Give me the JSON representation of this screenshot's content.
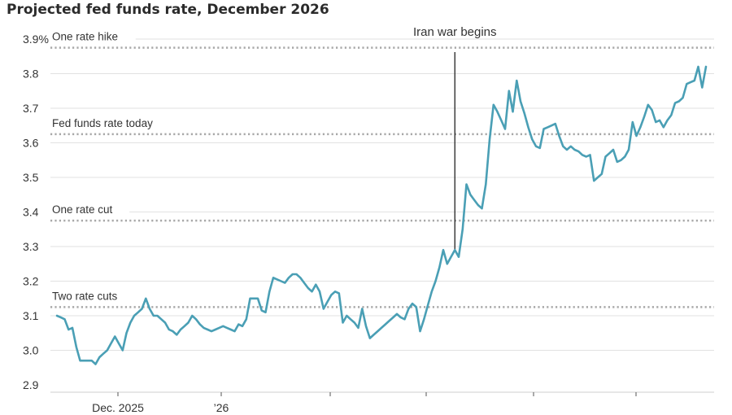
{
  "chart_data": {
    "type": "line",
    "title": "Projected fed funds rate, December 2026",
    "xlabel": "",
    "ylabel": "",
    "ylim": [
      2.9,
      3.9
    ],
    "y_ticks": [
      "2.9",
      "3.0",
      "3.1",
      "3.2",
      "3.3",
      "3.4",
      "3.5",
      "3.6",
      "3.7",
      "3.8",
      "3.9%"
    ],
    "y_tick_values": [
      2.9,
      3.0,
      3.1,
      3.2,
      3.3,
      3.4,
      3.5,
      3.6,
      3.7,
      3.8,
      3.9
    ],
    "x_tick_labels": [
      "Dec. 2025",
      "’26",
      "",
      "",
      "",
      ""
    ],
    "grid": "horizontal",
    "line_color": "#4a9fb5",
    "reference_lines": [
      {
        "label": "One rate hike",
        "value": 3.875
      },
      {
        "label": "Fed funds rate today",
        "value": 3.625
      },
      {
        "label": "One rate cut",
        "value": 3.375
      },
      {
        "label": "Two rate cuts",
        "value": 3.125
      }
    ],
    "annotations": [
      {
        "label": "Iran war begins",
        "at_index": 103
      }
    ],
    "series": [
      {
        "values": [
          3.1,
          3.095,
          3.09,
          3.06,
          3.065,
          3.01,
          2.97,
          2.97,
          2.97,
          2.97,
          2.96,
          2.98,
          2.99,
          3.0,
          3.02,
          3.04,
          3.02,
          3.0,
          3.05,
          3.08,
          3.1,
          3.11,
          3.12,
          3.15,
          3.12,
          3.1,
          3.1,
          3.09,
          3.08,
          3.06,
          3.055,
          3.045,
          3.06,
          3.07,
          3.08,
          3.1,
          3.09,
          3.075,
          3.065,
          3.06,
          3.055,
          3.06,
          3.065,
          3.07,
          3.065,
          3.06,
          3.055,
          3.075,
          3.07,
          3.09,
          3.15,
          3.15,
          3.15,
          3.115,
          3.11,
          3.17,
          3.21,
          3.205,
          3.2,
          3.195,
          3.21,
          3.22,
          3.22,
          3.21,
          3.195,
          3.18,
          3.17,
          3.19,
          3.17,
          3.12,
          3.14,
          3.16,
          3.17,
          3.165,
          3.08,
          3.1,
          3.09,
          3.08,
          3.065,
          3.12,
          3.07,
          3.035,
          3.045,
          3.055,
          3.065,
          3.075,
          3.085,
          3.095,
          3.105,
          3.095,
          3.09,
          3.12,
          3.135,
          3.125,
          3.055,
          3.09,
          3.13,
          3.17,
          3.2,
          3.24,
          3.29,
          3.25,
          3.27,
          3.29,
          3.27,
          3.35,
          3.48,
          3.45,
          3.435,
          3.42,
          3.41,
          3.48,
          3.61,
          3.71,
          3.69,
          3.665,
          3.64,
          3.75,
          3.69,
          3.78,
          3.72,
          3.685,
          3.645,
          3.61,
          3.59,
          3.585,
          3.64,
          3.645,
          3.65,
          3.655,
          3.62,
          3.59,
          3.58,
          3.59,
          3.58,
          3.575,
          3.565,
          3.56,
          3.565,
          3.49,
          3.5,
          3.51,
          3.56,
          3.57,
          3.58,
          3.545,
          3.55,
          3.56,
          3.58,
          3.66,
          3.62,
          3.645,
          3.675,
          3.71,
          3.695,
          3.66,
          3.665,
          3.645,
          3.665,
          3.68,
          3.715,
          3.72,
          3.73,
          3.77,
          3.775,
          3.78,
          3.82,
          3.76,
          3.82
        ]
      }
    ]
  }
}
